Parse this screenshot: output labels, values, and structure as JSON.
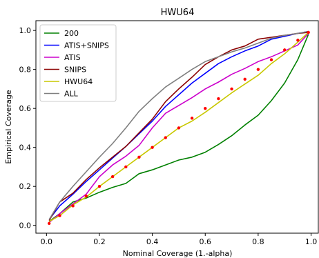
{
  "chart_data": {
    "type": "line",
    "title": "HWU64",
    "xlabel": "Nominal Coverage (1.-alpha)",
    "ylabel": "Empirical Coverage",
    "xlim": [
      -0.04,
      1.03
    ],
    "ylim": [
      -0.04,
      1.05
    ],
    "xticks": [
      "0.0",
      "0.2",
      "0.4",
      "0.6",
      "0.8",
      "1.0"
    ],
    "yticks": [
      "0.0",
      "0.2",
      "0.4",
      "0.6",
      "0.8",
      "1.0"
    ],
    "grid": false,
    "legend_position": "top-left",
    "x": [
      0.01,
      0.05,
      0.1,
      0.15,
      0.2,
      0.25,
      0.3,
      0.35,
      0.4,
      0.45,
      0.5,
      0.55,
      0.6,
      0.65,
      0.7,
      0.75,
      0.8,
      0.85,
      0.9,
      0.95,
      0.99
    ],
    "series": [
      {
        "name": "200",
        "color": "#008000",
        "values": [
          0.02,
          0.06,
          0.12,
          0.14,
          0.17,
          0.195,
          0.215,
          0.265,
          0.285,
          0.31,
          0.335,
          0.35,
          0.375,
          0.415,
          0.46,
          0.515,
          0.565,
          0.64,
          0.73,
          0.85,
          0.98
        ]
      },
      {
        "name": "ATIS+SNIPS",
        "color": "#0000ff",
        "values": [
          0.03,
          0.1,
          0.16,
          0.225,
          0.285,
          0.345,
          0.405,
          0.47,
          0.535,
          0.61,
          0.67,
          0.73,
          0.78,
          0.83,
          0.865,
          0.895,
          0.92,
          0.955,
          0.97,
          0.985,
          0.995
        ]
      },
      {
        "name": "ATIS",
        "color": "#cc00cc",
        "values": [
          0.015,
          0.06,
          0.11,
          0.16,
          0.25,
          0.31,
          0.355,
          0.41,
          0.5,
          0.575,
          0.615,
          0.655,
          0.7,
          0.735,
          0.775,
          0.805,
          0.84,
          0.865,
          0.895,
          0.925,
          0.985
        ]
      },
      {
        "name": "SNIPS",
        "color": "#8b0000",
        "values": [
          0.025,
          0.12,
          0.165,
          0.235,
          0.295,
          0.35,
          0.405,
          0.475,
          0.545,
          0.635,
          0.7,
          0.76,
          0.825,
          0.865,
          0.9,
          0.92,
          0.955,
          0.965,
          0.975,
          0.985,
          0.99
        ]
      },
      {
        "name": "HWU64",
        "color": "#c8c800",
        "values": [
          0.02,
          0.05,
          0.105,
          0.145,
          0.2,
          0.25,
          0.3,
          0.35,
          0.4,
          0.45,
          0.5,
          0.535,
          0.58,
          0.63,
          0.68,
          0.725,
          0.77,
          0.83,
          0.88,
          0.94,
          0.99
        ]
      },
      {
        "name": "ALL",
        "color": "#808080",
        "values": [
          0.03,
          0.12,
          0.2,
          0.275,
          0.35,
          0.42,
          0.5,
          0.585,
          0.65,
          0.71,
          0.755,
          0.8,
          0.84,
          0.865,
          0.89,
          0.91,
          0.935,
          0.96,
          0.975,
          0.985,
          0.995
        ]
      }
    ],
    "reference_points": {
      "color": "#ff0000",
      "x": [
        0.01,
        0.05,
        0.1,
        0.15,
        0.2,
        0.25,
        0.3,
        0.35,
        0.4,
        0.45,
        0.5,
        0.55,
        0.6,
        0.65,
        0.7,
        0.75,
        0.8,
        0.85,
        0.9,
        0.95,
        0.99
      ],
      "y": [
        0.01,
        0.05,
        0.1,
        0.15,
        0.2,
        0.25,
        0.3,
        0.35,
        0.4,
        0.45,
        0.5,
        0.55,
        0.6,
        0.65,
        0.7,
        0.75,
        0.8,
        0.85,
        0.9,
        0.95,
        0.99
      ]
    }
  }
}
